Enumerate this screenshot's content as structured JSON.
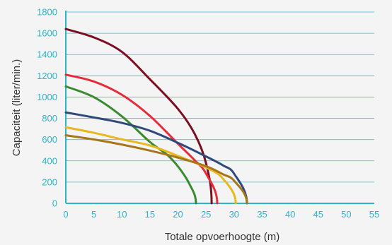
{
  "chart_data": {
    "type": "line",
    "title": "",
    "xlabel": "Totale opvoerhoogte (m)",
    "ylabel": "Capaciteit (liter/min.)",
    "xlim": [
      0,
      55
    ],
    "ylim": [
      0,
      1800
    ],
    "x_ticks": [
      0,
      5,
      10,
      15,
      20,
      25,
      30,
      35,
      40,
      45,
      50,
      55
    ],
    "y_ticks": [
      0,
      200,
      400,
      600,
      800,
      1000,
      1200,
      1400,
      1600,
      1800
    ],
    "grid": "horizontal",
    "legend": "none",
    "series": [
      {
        "color": "#7a0f23",
        "x": [
          0,
          5,
          10,
          15,
          20,
          23,
          25,
          26
        ],
        "y": [
          1640,
          1561,
          1425,
          1167,
          888,
          651,
          377,
          0
        ]
      },
      {
        "color": "#e52d3a",
        "x": [
          0,
          5,
          10,
          15,
          20,
          23,
          25,
          27
        ],
        "y": [
          1210,
          1146,
          1021,
          822,
          560,
          404,
          280,
          0
        ]
      },
      {
        "color": "#3a8a30",
        "x": [
          0,
          5,
          10,
          15,
          18,
          20,
          22,
          23.2
        ],
        "y": [
          1100,
          999,
          818,
          577,
          460,
          347,
          186,
          0
        ]
      },
      {
        "color": "#2f4a7a",
        "x": [
          0,
          5,
          10,
          15,
          20,
          25,
          28,
          30,
          32.3
        ],
        "y": [
          855,
          808,
          757,
          683,
          569,
          441,
          358,
          279,
          0
        ]
      },
      {
        "color": "#e8b820",
        "x": [
          0,
          5,
          10,
          15,
          20,
          25,
          28,
          30.3
        ],
        "y": [
          715,
          664,
          602,
          544,
          446,
          337,
          233,
          0
        ]
      },
      {
        "color": "#a67618",
        "x": [
          0,
          5,
          10,
          15,
          20,
          25,
          28,
          30,
          32.3
        ],
        "y": [
          640,
          601,
          553,
          496,
          430,
          349,
          274,
          213,
          0
        ]
      }
    ]
  }
}
